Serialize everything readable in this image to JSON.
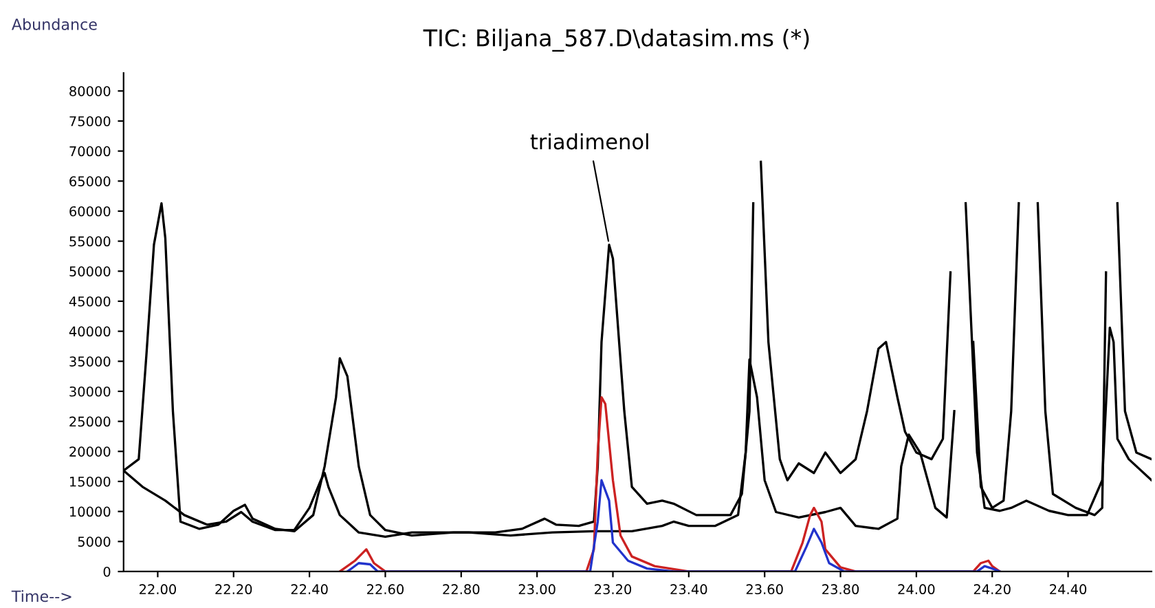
{
  "chart_data": {
    "type": "line",
    "ylabel": "Abundance",
    "xlabel": "Time-->",
    "xlim": [
      21.91,
      24.62
    ],
    "ylim": [
      0,
      83000
    ],
    "xticks": [
      {
        "value": 22.0,
        "label": "22.00"
      },
      {
        "value": 22.2,
        "label": "22.20"
      },
      {
        "value": 22.4,
        "label": "22.40"
      },
      {
        "value": 22.6,
        "label": "22.60"
      },
      {
        "value": 22.8,
        "label": "22.80"
      },
      {
        "value": 23.0,
        "label": "23.00"
      },
      {
        "value": 23.2,
        "label": "23.20"
      },
      {
        "value": 23.4,
        "label": "23.40"
      },
      {
        "value": 23.6,
        "label": "23.60"
      },
      {
        "value": 23.8,
        "label": "23.80"
      },
      {
        "value": 24.0,
        "label": "24.00"
      },
      {
        "value": 24.2,
        "label": "24.20"
      },
      {
        "value": 24.4,
        "label": "24.40"
      }
    ],
    "yticks": [
      0,
      5000,
      10000,
      15000,
      20000,
      25000,
      30000,
      35000,
      40000,
      45000,
      50000,
      55000,
      60000,
      65000,
      70000,
      75000,
      80000
    ],
    "grid": false,
    "legend": "top",
    "marker": "none",
    "line_style": "solid",
    "annotations": [
      {
        "text": "triadimenol",
        "x": 23.19,
        "y": 54400
      }
    ],
    "series": [
      {
        "name": "TIC: Biljana_587.D\\datasim.ms (*)",
        "color": "#000000",
        "x": [
          21.91,
          21.95,
          21.97,
          21.99,
          22.01,
          22.02,
          22.04,
          22.06,
          22.11,
          22.16,
          22.2,
          22.23,
          22.25,
          22.31,
          22.36,
          22.41,
          22.44,
          22.47,
          22.48,
          22.5,
          22.53,
          22.56,
          22.6,
          22.67,
          22.78,
          22.89,
          22.96,
          23.02,
          23.05,
          23.11,
          23.15,
          23.16,
          23.17,
          23.19,
          23.2,
          23.23,
          23.25,
          23.29,
          23.33,
          23.36,
          23.42,
          23.51,
          23.54,
          23.56,
          23.57,
          23.58,
          23.59,
          23.61,
          23.64,
          23.66,
          23.69,
          23.73,
          23.76,
          23.8,
          23.84,
          23.87,
          23.9,
          23.92,
          23.95,
          23.97,
          24.0,
          24.04,
          24.07,
          24.09,
          24.11,
          24.13,
          24.15,
          24.17,
          24.2,
          24.23,
          24.25,
          24.27,
          24.28,
          24.31,
          24.32,
          24.34,
          24.36,
          24.42,
          24.47,
          24.49,
          24.5,
          24.51,
          24.53,
          24.55,
          24.58,
          24.62
        ],
        "values": [
          16800,
          18700,
          35900,
          54400,
          61300,
          55500,
          26700,
          8300,
          7100,
          7800,
          10100,
          11100,
          8800,
          7100,
          6700,
          9400,
          17500,
          29000,
          35500,
          32500,
          17500,
          9400,
          6900,
          6000,
          6500,
          6500,
          7100,
          8800,
          7800,
          7600,
          8300,
          17500,
          38200,
          54400,
          52100,
          26700,
          14100,
          11300,
          11800,
          11300,
          9400,
          9400,
          12900,
          26700,
          61300,
          null,
          68200,
          38200,
          18700,
          15200,
          18000,
          16400,
          19800,
          16400,
          18700,
          26700,
          37100,
          38200,
          29000,
          23300,
          19800,
          18700,
          22100,
          49800,
          null,
          null,
          38200,
          14100,
          10600,
          11800,
          26700,
          61300,
          null,
          null,
          61300,
          26700,
          12900,
          10600,
          9400,
          10600,
          49800,
          null,
          61300,
          26700,
          19800,
          18700
        ]
      },
      {
        "color": "#000000",
        "x": [
          21.91,
          21.96,
          22.02,
          22.07,
          22.13,
          22.18,
          22.22,
          22.25,
          22.31,
          22.36,
          22.4,
          22.43,
          22.44,
          22.45,
          22.48,
          22.53,
          22.6,
          22.67,
          22.82,
          22.93,
          23.04,
          23.15,
          23.25,
          23.33,
          23.36,
          23.4,
          23.47,
          23.53,
          23.55,
          23.56,
          23.58,
          23.6,
          23.63,
          23.69,
          23.76,
          23.8,
          23.84,
          23.9,
          23.95,
          23.96,
          23.98,
          24.01,
          24.05,
          24.08,
          24.1,
          24.12,
          24.13,
          24.16,
          24.18,
          24.22,
          24.25,
          24.29,
          24.35,
          24.4,
          24.45,
          24.49,
          24.51,
          24.52,
          24.53,
          24.56,
          24.62
        ],
        "values": [
          16800,
          14100,
          11800,
          9400,
          7800,
          8300,
          9900,
          8300,
          6900,
          6900,
          10600,
          15200,
          16400,
          14100,
          9400,
          6500,
          5800,
          6500,
          6500,
          6000,
          6500,
          6700,
          6700,
          7600,
          8300,
          7600,
          7600,
          9400,
          19800,
          35300,
          29000,
          15200,
          9900,
          9000,
          9900,
          10600,
          7600,
          7100,
          8800,
          17500,
          22800,
          19800,
          10600,
          9000,
          26700,
          null,
          61300,
          19800,
          10600,
          10100,
          10600,
          11800,
          10100,
          9400,
          9400,
          15200,
          40600,
          38200,
          22100,
          18700,
          15200
        ]
      },
      {
        "color": "#cc2222",
        "x": [
          22.48,
          22.52,
          22.55,
          22.57,
          22.6,
          23.13,
          23.15,
          23.16,
          23.17,
          23.18,
          23.2,
          23.22,
          23.25,
          23.31,
          23.4,
          23.67,
          23.7,
          23.72,
          23.73,
          23.75,
          23.76,
          23.8,
          23.84,
          24.15,
          24.17,
          24.19,
          24.2,
          24.22
        ],
        "values": [
          0,
          1800,
          3700,
          1400,
          0,
          0,
          3700,
          19800,
          29000,
          27900,
          15200,
          6000,
          2500,
          900,
          0,
          0,
          4800,
          9400,
          10600,
          8300,
          3700,
          700,
          0,
          0,
          1400,
          1800,
          900,
          0
        ]
      },
      {
        "color": "#2233cc",
        "x": [
          22.5,
          22.53,
          22.56,
          22.58,
          23.14,
          23.16,
          23.17,
          23.19,
          23.2,
          23.24,
          23.29,
          23.36,
          23.68,
          23.71,
          23.73,
          23.75,
          23.77,
          23.81,
          24.16,
          24.18,
          24.2,
          24.22
        ],
        "values": [
          0,
          1400,
          1200,
          0,
          0,
          8300,
          15200,
          11800,
          4800,
          1800,
          500,
          0,
          0,
          4100,
          7100,
          4800,
          1400,
          0,
          0,
          900,
          500,
          0
        ]
      }
    ]
  }
}
